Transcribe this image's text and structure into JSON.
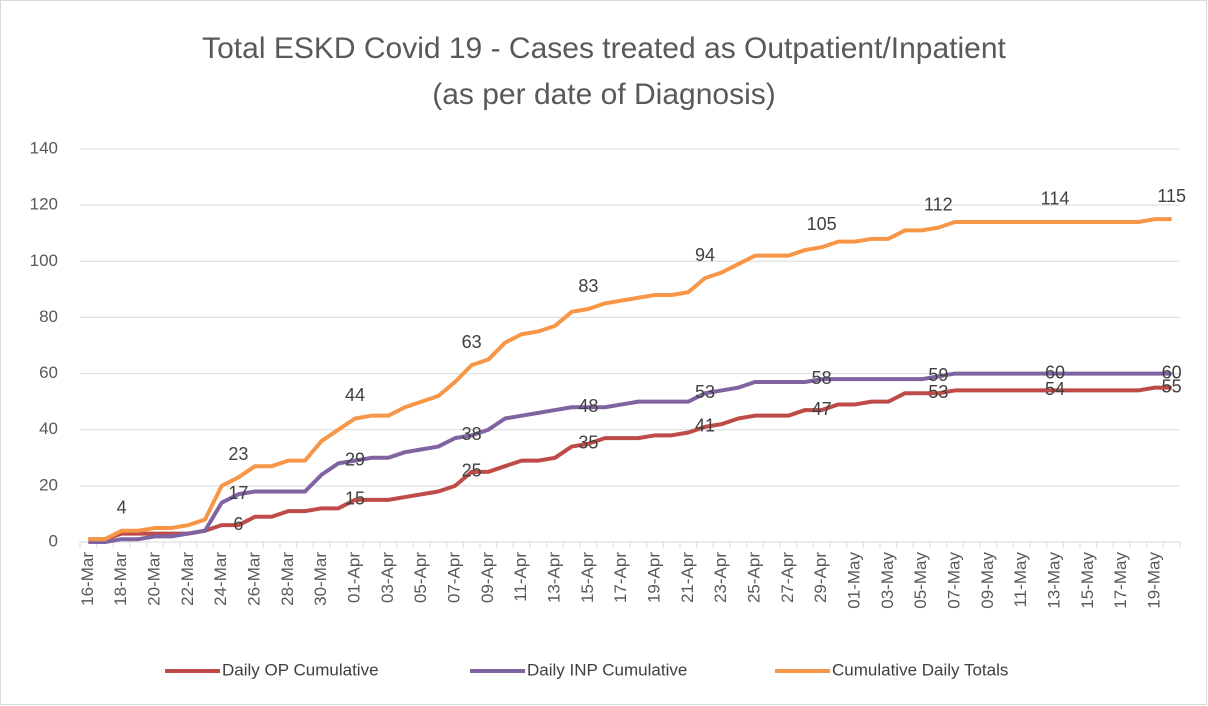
{
  "chart_data": {
    "type": "line",
    "title": [
      "Total ESKD Covid 19 - Cases treated as Outpatient/Inpatient",
      "(as per date of Diagnosis)"
    ],
    "categories": [
      "16-Mar",
      null,
      "18-Mar",
      null,
      "20-Mar",
      null,
      "22-Mar",
      null,
      "24-Mar",
      null,
      "26-Mar",
      null,
      "28-Mar",
      null,
      "30-Mar",
      null,
      "01-Apr",
      null,
      "03-Apr",
      null,
      "05-Apr",
      null,
      "07-Apr",
      null,
      "09-Apr",
      null,
      "11-Apr",
      null,
      "13-Apr",
      null,
      "15-Apr",
      null,
      "17-Apr",
      null,
      "19-Apr",
      null,
      "21-Apr",
      null,
      "23-Apr",
      null,
      "25-Apr",
      null,
      "27-Apr",
      null,
      "29-Apr",
      null,
      "01-May",
      null,
      "03-May",
      null,
      "05-May",
      null,
      "07-May",
      null,
      "09-May",
      null,
      "11-May",
      null,
      "13-May",
      null,
      "15-May",
      null,
      "17-May",
      null,
      "19-May",
      null
    ],
    "series": [
      {
        "name": "Daily OP Cumulative",
        "color": "#be4b48",
        "values": [
          1,
          1,
          3,
          3,
          3,
          3,
          3,
          4,
          6,
          6,
          9,
          9,
          11,
          11,
          12,
          12,
          15,
          15,
          15,
          16,
          17,
          18,
          20,
          25,
          25,
          27,
          29,
          29,
          30,
          34,
          35,
          37,
          37,
          37,
          38,
          38,
          39,
          41,
          42,
          44,
          45,
          45,
          45,
          47,
          47,
          49,
          49,
          50,
          50,
          53,
          53,
          53,
          54,
          54,
          54,
          54,
          54,
          54,
          54,
          54,
          54,
          54,
          54,
          54,
          55,
          55
        ]
      },
      {
        "name": "Daily INP Cumulative",
        "color": "#8064a2",
        "values": [
          0,
          0,
          1,
          1,
          2,
          2,
          3,
          4,
          14,
          17,
          18,
          18,
          18,
          18,
          24,
          28,
          29,
          30,
          30,
          32,
          33,
          34,
          37,
          38,
          40,
          44,
          45,
          46,
          47,
          48,
          48,
          48,
          49,
          50,
          50,
          50,
          50,
          53,
          54,
          55,
          57,
          57,
          57,
          57,
          58,
          58,
          58,
          58,
          58,
          58,
          58,
          59,
          60,
          60,
          60,
          60,
          60,
          60,
          60,
          60,
          60,
          60,
          60,
          60,
          60,
          60
        ]
      },
      {
        "name": "Cumulative Daily Totals",
        "color": "#f79646",
        "values": [
          1,
          1,
          4,
          4,
          5,
          5,
          6,
          8,
          20,
          23,
          27,
          27,
          29,
          29,
          36,
          40,
          44,
          45,
          45,
          48,
          50,
          52,
          57,
          63,
          65,
          71,
          74,
          75,
          77,
          82,
          83,
          85,
          86,
          87,
          88,
          88,
          89,
          94,
          96,
          99,
          102,
          102,
          102,
          104,
          105,
          107,
          107,
          108,
          108,
          111,
          111,
          112,
          114,
          114,
          114,
          114,
          114,
          114,
          114,
          114,
          114,
          114,
          114,
          114,
          115,
          115
        ]
      }
    ],
    "ylim": [
      0,
      140
    ],
    "yticks": [
      0,
      20,
      40,
      60,
      80,
      100,
      120,
      140
    ],
    "grid": true,
    "legend": "bottom"
  }
}
